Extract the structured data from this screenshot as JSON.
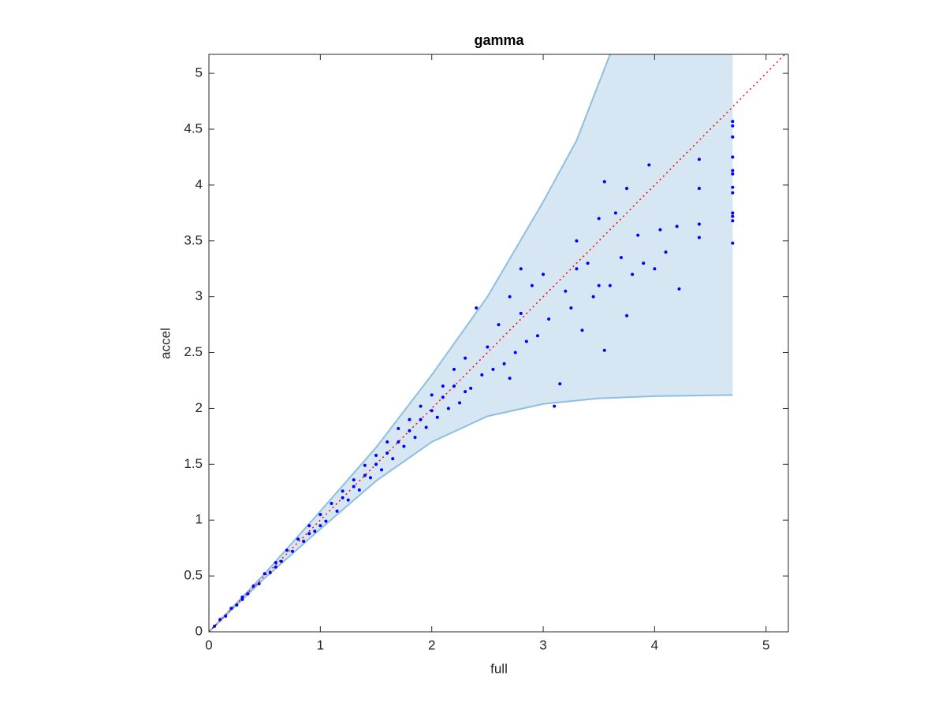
{
  "chart_data": {
    "type": "scatter",
    "title": "gamma",
    "x_label": "full",
    "y_label": "accel",
    "xlim": [
      0,
      5.2
    ],
    "ylim": [
      0,
      5.17
    ],
    "xticks": [
      0,
      1,
      2,
      3,
      4,
      5
    ],
    "yticks": [
      0,
      0.5,
      1,
      1.5,
      2,
      2.5,
      3,
      3.5,
      4,
      4.5,
      5
    ],
    "grid": false,
    "reference_line": {
      "color": "#ff0000",
      "style": "dotted"
    },
    "band": {
      "fill": "#d6e6f3",
      "edge": "#8fbfe0",
      "upper": {
        "x": [
          0,
          0.5,
          1,
          1.5,
          2,
          2.5,
          3,
          3.3,
          3.6
        ],
        "y": [
          0,
          0.52,
          1.08,
          1.65,
          2.3,
          3.0,
          3.85,
          4.4,
          5.17
        ]
      },
      "lower": {
        "x": [
          0,
          0.5,
          1,
          1.5,
          2,
          2.5,
          3,
          3.5,
          4,
          4.7
        ],
        "y": [
          0,
          0.48,
          0.92,
          1.35,
          1.7,
          1.93,
          2.04,
          2.09,
          2.11,
          2.12
        ]
      }
    },
    "series": [
      {
        "color": "#0000ff",
        "x": [
          0.05,
          0.1,
          0.15,
          0.2,
          0.25,
          0.3,
          0.35,
          0.4,
          0.45,
          0.5,
          0.55,
          0.6,
          0.65,
          0.7,
          0.75,
          0.8,
          0.85,
          0.9,
          0.95,
          1.0,
          1.05,
          1.1,
          1.15,
          1.2,
          1.25,
          1.3,
          1.35,
          1.4,
          1.45,
          1.5,
          1.55,
          1.6,
          1.65,
          1.7,
          1.75,
          1.8,
          1.85,
          1.9,
          1.95,
          2.0,
          2.05,
          2.1,
          2.15,
          2.2,
          2.25,
          2.3,
          2.35,
          2.4,
          2.45,
          2.5,
          2.55,
          2.6,
          2.65,
          2.7,
          2.75,
          2.8,
          2.85,
          2.9,
          2.95,
          3.0,
          3.05,
          3.1,
          3.15,
          3.2,
          3.25,
          3.3,
          3.35,
          3.4,
          3.45,
          3.5,
          3.55,
          3.55,
          3.6,
          3.65,
          3.7,
          3.75,
          3.75,
          3.8,
          3.85,
          3.9,
          3.95,
          4.0,
          4.05,
          4.1,
          4.2,
          4.22,
          4.4,
          4.4,
          4.4,
          4.4,
          4.7,
          4.7,
          4.7,
          4.7,
          4.7,
          4.7,
          4.7,
          4.7,
          4.7,
          4.7,
          4.7,
          4.7,
          1.0,
          1.2,
          1.4,
          1.6,
          1.8,
          2.0,
          2.2,
          2.8,
          2.7,
          3.5,
          3.3,
          2.3,
          0.3,
          0.6,
          0.9,
          1.3,
          1.5,
          1.7,
          1.9,
          2.1
        ],
        "y": [
          0.05,
          0.11,
          0.14,
          0.21,
          0.24,
          0.31,
          0.34,
          0.41,
          0.43,
          0.52,
          0.53,
          0.62,
          0.63,
          0.73,
          0.72,
          0.83,
          0.81,
          0.95,
          0.9,
          1.05,
          0.99,
          1.15,
          1.08,
          1.26,
          1.18,
          1.36,
          1.27,
          1.49,
          1.38,
          1.58,
          1.45,
          1.7,
          1.55,
          1.82,
          1.66,
          1.9,
          1.74,
          2.02,
          1.83,
          2.12,
          1.92,
          2.2,
          2.0,
          2.35,
          2.05,
          2.45,
          2.18,
          2.9,
          2.3,
          2.55,
          2.35,
          2.75,
          2.4,
          3.0,
          2.5,
          2.85,
          2.6,
          3.1,
          2.65,
          3.2,
          2.8,
          2.02,
          2.22,
          3.05,
          2.9,
          3.5,
          2.7,
          3.3,
          3.0,
          3.7,
          4.03,
          2.52,
          3.1,
          3.75,
          3.35,
          2.83,
          3.97,
          3.2,
          3.55,
          3.3,
          4.18,
          3.25,
          3.6,
          3.4,
          3.63,
          3.07,
          4.23,
          3.97,
          3.65,
          3.53,
          4.57,
          4.53,
          4.43,
          4.25,
          4.13,
          4.1,
          3.98,
          3.93,
          3.75,
          3.72,
          3.68,
          3.48,
          0.95,
          1.2,
          1.4,
          1.6,
          1.8,
          1.98,
          2.2,
          3.25,
          2.27,
          3.1,
          3.25,
          2.15,
          0.29,
          0.58,
          0.88,
          1.3,
          1.5,
          1.7,
          1.9,
          2.1
        ]
      }
    ]
  }
}
